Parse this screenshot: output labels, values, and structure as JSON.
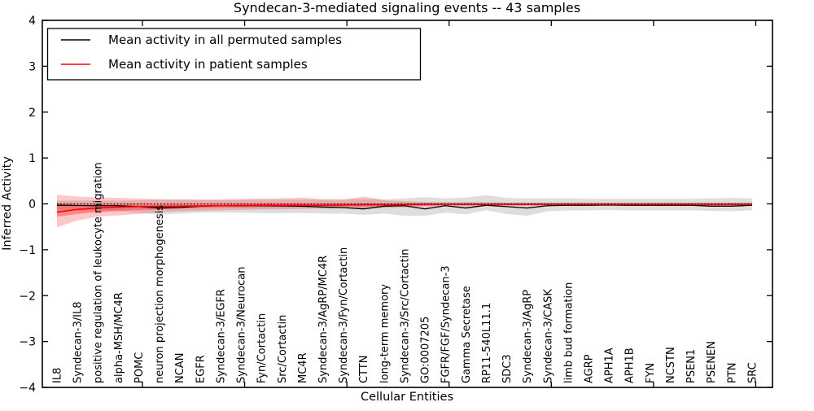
{
  "chart_data": {
    "type": "line",
    "title": "Syndecan-3-mediated signaling events -- 43 samples",
    "xlabel": "Cellular Entities",
    "ylabel": "Inferred Activity",
    "ylim": [
      -4,
      4
    ],
    "yticks": [
      4,
      3,
      2,
      1,
      0,
      -1,
      -2,
      -3,
      -4
    ],
    "grid": false,
    "legend_position": "upper left",
    "zero_reference_line": {
      "style": "dotted",
      "color": "#000000",
      "y": 0
    },
    "categories": [
      "IL8",
      "Syndecan-3/IL8",
      "positive regulation of leukocyte migration",
      "alpha-MSH/MC4R",
      "POMC",
      "neuron projection morphogenesis",
      "NCAN",
      "EGFR",
      "Syndecan-3/EGFR",
      "Syndecan-3/Neurocan",
      "Fyn/Cortactin",
      "Src/Cortactin",
      "MC4R",
      "Syndecan-3/AgRP/MC4R",
      "Syndecan-3/Fyn/Cortactin",
      "CTTN",
      "long-term memory",
      "Syndecan-3/Src/Cortactin",
      "GO:0007205",
      "FGFR/FGF/Syndecan-3",
      "Gamma Secretase",
      "RP11-540L11.1",
      "SDC3",
      "Syndecan-3/AgRP",
      "Syndecan-3/CASK",
      "limb bud formation",
      "AGRP",
      "APH1A",
      "APH1B",
      "FYN",
      "NCSTN",
      "PSEN1",
      "PSENEN",
      "PTN",
      "SRC"
    ],
    "series": [
      {
        "name": "Mean activity in all permuted samples",
        "color": "#000000",
        "band_fill": "rgba(0,0,0,0.13)",
        "values": [
          -0.03,
          -0.035,
          -0.04,
          -0.04,
          -0.06,
          -0.09,
          -0.08,
          -0.05,
          -0.04,
          -0.04,
          -0.04,
          -0.045,
          -0.05,
          -0.07,
          -0.08,
          -0.11,
          -0.05,
          -0.04,
          -0.11,
          -0.04,
          -0.09,
          -0.03,
          -0.06,
          -0.09,
          -0.04,
          -0.03,
          -0.03,
          -0.025,
          -0.03,
          -0.03,
          -0.03,
          -0.03,
          -0.05,
          -0.05,
          -0.03
        ],
        "band_upper": [
          0.07,
          0.07,
          0.07,
          0.07,
          0.08,
          0.09,
          0.09,
          0.08,
          0.08,
          0.08,
          0.09,
          0.09,
          0.09,
          0.09,
          0.1,
          0.11,
          0.1,
          0.12,
          0.15,
          0.12,
          0.14,
          0.19,
          0.13,
          0.12,
          0.12,
          0.12,
          0.11,
          0.11,
          0.11,
          0.11,
          0.11,
          0.11,
          0.12,
          0.13,
          0.12
        ],
        "band_lower": [
          -0.14,
          -0.14,
          -0.15,
          -0.16,
          -0.19,
          -0.24,
          -0.21,
          -0.19,
          -0.19,
          -0.19,
          -0.2,
          -0.2,
          -0.2,
          -0.21,
          -0.21,
          -0.24,
          -0.21,
          -0.26,
          -0.26,
          -0.19,
          -0.23,
          -0.14,
          -0.22,
          -0.26,
          -0.16,
          -0.145,
          -0.14,
          -0.135,
          -0.14,
          -0.14,
          -0.14,
          -0.14,
          -0.15,
          -0.16,
          -0.14
        ]
      },
      {
        "name": "Mean activity in patient samples",
        "color": "#ff0000",
        "band_fill": "rgba(255,0,0,0.22)",
        "inner_band_fill": "rgba(255,0,0,0.32)",
        "values": [
          -0.18,
          -0.12,
          -0.09,
          -0.07,
          -0.06,
          -0.055,
          -0.05,
          -0.045,
          -0.04,
          -0.035,
          -0.03,
          -0.03,
          -0.03,
          -0.03,
          -0.025,
          -0.02,
          -0.02,
          -0.015,
          -0.01,
          -0.01,
          -0.01,
          -0.01,
          -0.01,
          -0.01,
          -0.01,
          -0.01,
          -0.01,
          -0.01,
          -0.01,
          -0.01,
          -0.01,
          -0.01,
          -0.01,
          -0.01,
          -0.01
        ],
        "band_upper": [
          0.2,
          0.16,
          0.14,
          0.13,
          0.12,
          0.1,
          0.1,
          0.1,
          0.1,
          0.11,
          0.12,
          0.12,
          0.14,
          0.1,
          0.09,
          0.16,
          0.08,
          0.06,
          0.04,
          0.04,
          0.04,
          0.04,
          0.03,
          0.03,
          0.03,
          0.03,
          0.03,
          0.03,
          0.03,
          0.03,
          0.03,
          0.03,
          0.03,
          0.03,
          0.03
        ],
        "band_lower": [
          -0.51,
          -0.36,
          -0.28,
          -0.25,
          -0.22,
          -0.18,
          -0.16,
          -0.15,
          -0.14,
          -0.13,
          -0.12,
          -0.12,
          -0.11,
          -0.1,
          -0.1,
          -0.11,
          -0.09,
          -0.08,
          -0.06,
          -0.05,
          -0.05,
          -0.05,
          -0.04,
          -0.04,
          -0.04,
          -0.04,
          -0.04,
          -0.04,
          -0.04,
          -0.04,
          -0.04,
          -0.04,
          -0.04,
          -0.04,
          -0.04
        ],
        "inner_band_upper": [
          0.01,
          0.0,
          0.0,
          0.0,
          0.0,
          0.0,
          0.0,
          0.0,
          0.01,
          0.01,
          0.01,
          0.01,
          0.01,
          0.01,
          0.01,
          0.01,
          0.01,
          0.01,
          0.01,
          0.01,
          0.01,
          0.01,
          0.01,
          0.01,
          0.01,
          0.01,
          0.01,
          0.01,
          0.01,
          0.01,
          0.01,
          0.01,
          0.01,
          0.01,
          0.01
        ],
        "inner_band_lower": [
          -0.28,
          -0.22,
          -0.18,
          -0.15,
          -0.13,
          -0.12,
          -0.1,
          -0.09,
          -0.08,
          -0.08,
          -0.07,
          -0.07,
          -0.07,
          -0.06,
          -0.06,
          -0.06,
          -0.05,
          -0.05,
          -0.04,
          -0.03,
          -0.03,
          -0.03,
          -0.03,
          -0.03,
          -0.03,
          -0.03,
          -0.03,
          -0.03,
          -0.03,
          -0.03,
          -0.03,
          -0.03,
          -0.03,
          -0.03,
          -0.03
        ]
      }
    ]
  }
}
